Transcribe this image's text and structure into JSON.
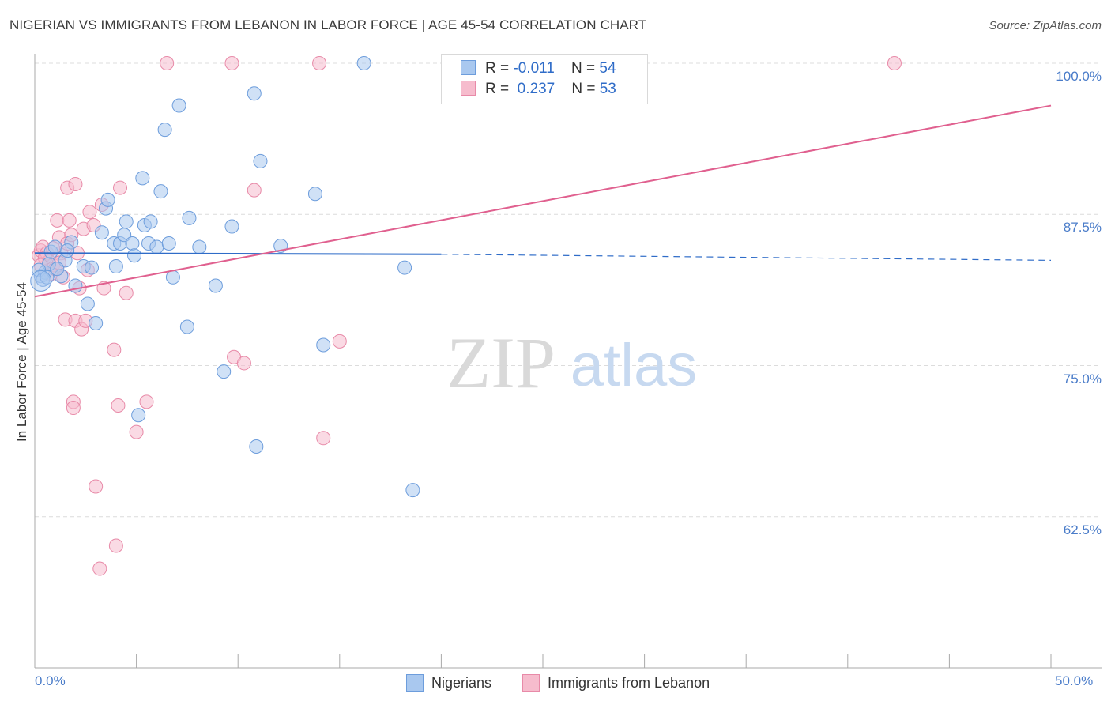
{
  "title": "NIGERIAN VS IMMIGRANTS FROM LEBANON IN LABOR FORCE | AGE 45-54 CORRELATION CHART",
  "source": "Source: ZipAtlas.com",
  "watermark": {
    "zip": "ZIP",
    "atlas": "atlas"
  },
  "colors": {
    "blue_fill": "#a9c8ef",
    "blue_stroke": "#6d9ddc",
    "blue_line": "#2f6cc8",
    "pink_fill": "#f6bccd",
    "pink_stroke": "#e88aa8",
    "pink_line": "#e0608f",
    "tick_label": "#4a7cc9",
    "grid": "#dcdcdc"
  },
  "legend": {
    "rows": [
      {
        "r_label": "R =",
        "r_value": "-0.011",
        "n_label": "N =",
        "n_value": "54"
      },
      {
        "r_label": "R =",
        "r_value": "0.237",
        "n_label": "N =",
        "n_value": "53"
      }
    ]
  },
  "bottom_legend": {
    "series1": "Nigerians",
    "series2": "Immigrants from Lebanon"
  },
  "chart_data": {
    "type": "scatter",
    "title": "NIGERIAN VS IMMIGRANTS FROM LEBANON IN LABOR FORCE | AGE 45-54 CORRELATION CHART",
    "xlabel": "",
    "ylabel": "In Labor Force | Age 45-54",
    "xlim": [
      0,
      50
    ],
    "ylim": [
      50,
      100
    ],
    "x_tick_labels": [
      "0.0%",
      "50.0%"
    ],
    "y_tick_labels": [
      "100.0%",
      "87.5%",
      "75.0%",
      "62.5%"
    ],
    "y_ticks": [
      100,
      87.5,
      75,
      62.5
    ],
    "grid": true,
    "series": [
      {
        "name": "Nigerians",
        "r": -0.011,
        "n": 54,
        "trend": {
          "x0": 0,
          "y0": 84.3,
          "x1": 20,
          "y1": 84.2,
          "dashed_to_x": 50,
          "dashed_to_y": 83.7
        },
        "points": [
          [
            0.3,
            82.4
          ],
          [
            0.5,
            82.7
          ],
          [
            0.7,
            83.4
          ],
          [
            0.8,
            84.4
          ],
          [
            1.0,
            84.8
          ],
          [
            1.3,
            82.4
          ],
          [
            1.5,
            83.7
          ],
          [
            1.8,
            85.2
          ],
          [
            2.0,
            81.6
          ],
          [
            2.4,
            83.2
          ],
          [
            2.6,
            80.1
          ],
          [
            2.8,
            83.1
          ],
          [
            3.0,
            78.5
          ],
          [
            3.3,
            86.0
          ],
          [
            3.5,
            88.0
          ],
          [
            3.6,
            88.7
          ],
          [
            3.9,
            85.1
          ],
          [
            4.0,
            83.2
          ],
          [
            4.2,
            85.1
          ],
          [
            4.4,
            85.8
          ],
          [
            4.5,
            86.9
          ],
          [
            4.8,
            85.1
          ],
          [
            4.9,
            84.1
          ],
          [
            5.1,
            70.9
          ],
          [
            5.3,
            90.5
          ],
          [
            5.4,
            86.6
          ],
          [
            5.6,
            85.1
          ],
          [
            5.7,
            86.9
          ],
          [
            6.0,
            84.8
          ],
          [
            6.2,
            89.4
          ],
          [
            6.4,
            94.5
          ],
          [
            6.6,
            85.1
          ],
          [
            6.8,
            82.3
          ],
          [
            7.1,
            96.5
          ],
          [
            7.5,
            78.2
          ],
          [
            7.6,
            87.2
          ],
          [
            8.1,
            84.8
          ],
          [
            8.9,
            81.6
          ],
          [
            9.3,
            74.5
          ],
          [
            9.7,
            86.5
          ],
          [
            10.8,
            97.5
          ],
          [
            10.9,
            68.3
          ],
          [
            11.1,
            91.9
          ],
          [
            12.1,
            84.9
          ],
          [
            13.8,
            89.2
          ],
          [
            14.2,
            76.7
          ],
          [
            16.2,
            100
          ],
          [
            18.2,
            83.1
          ],
          [
            18.6,
            64.7
          ],
          [
            0.2,
            82.9
          ],
          [
            0.4,
            82.1
          ],
          [
            0.6,
            82.3
          ],
          [
            1.1,
            83.0
          ],
          [
            1.6,
            84.5
          ]
        ]
      },
      {
        "name": "Immigrants from Lebanon",
        "r": 0.237,
        "n": 53,
        "trend": {
          "x0": 0,
          "y0": 80.7,
          "x1": 50,
          "y1": 96.5
        },
        "points": [
          [
            0.2,
            84.1
          ],
          [
            0.3,
            84.5
          ],
          [
            0.4,
            84.8
          ],
          [
            0.6,
            84.3
          ],
          [
            0.7,
            83.6
          ],
          [
            0.8,
            82.6
          ],
          [
            0.9,
            83.3
          ],
          [
            1.0,
            83.0
          ],
          [
            1.1,
            87.0
          ],
          [
            1.2,
            85.6
          ],
          [
            1.3,
            84.3
          ],
          [
            1.4,
            82.3
          ],
          [
            1.5,
            78.8
          ],
          [
            1.6,
            85.1
          ],
          [
            1.6,
            89.7
          ],
          [
            1.7,
            87.0
          ],
          [
            1.8,
            85.8
          ],
          [
            1.9,
            72.0
          ],
          [
            1.9,
            71.5
          ],
          [
            2.0,
            78.7
          ],
          [
            2.0,
            90.0
          ],
          [
            2.1,
            84.3
          ],
          [
            2.2,
            81.4
          ],
          [
            2.3,
            78.0
          ],
          [
            2.4,
            86.3
          ],
          [
            2.5,
            78.7
          ],
          [
            2.6,
            82.9
          ],
          [
            2.9,
            86.6
          ],
          [
            3.0,
            65.0
          ],
          [
            3.2,
            58.2
          ],
          [
            3.3,
            88.3
          ],
          [
            3.4,
            81.4
          ],
          [
            3.9,
            76.3
          ],
          [
            4.0,
            60.1
          ],
          [
            4.1,
            71.7
          ],
          [
            4.2,
            89.7
          ],
          [
            4.5,
            81.0
          ],
          [
            5.0,
            69.5
          ],
          [
            5.5,
            72.0
          ],
          [
            6.5,
            100
          ],
          [
            9.7,
            100
          ],
          [
            9.8,
            75.7
          ],
          [
            10.3,
            75.2
          ],
          [
            10.8,
            89.5
          ],
          [
            14.0,
            100
          ],
          [
            14.2,
            69.0
          ],
          [
            15.0,
            77.0
          ],
          [
            42.3,
            100
          ],
          [
            0.5,
            83.9
          ],
          [
            0.9,
            84.7
          ],
          [
            1.2,
            83.5
          ],
          [
            2.7,
            87.7
          ],
          [
            0.3,
            83.3
          ]
        ]
      }
    ]
  }
}
